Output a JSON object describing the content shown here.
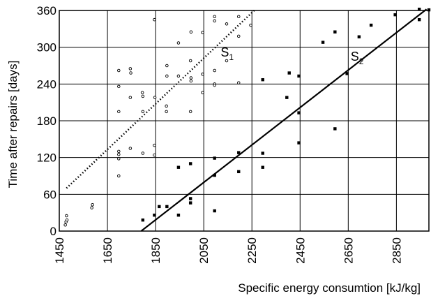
{
  "chart_data": {
    "type": "scatter",
    "title": "",
    "xlabel": "Specific energy consumtion [kJ/kg]",
    "ylabel": "Time after repairs [days]",
    "xlim": [
      1450,
      2985
    ],
    "ylim": [
      0,
      360
    ],
    "xticks": [
      "1450",
      "1650",
      "1850",
      "2050",
      "2250",
      "2450",
      "2650",
      "2850"
    ],
    "yticks": [
      "0",
      "60",
      "120",
      "180",
      "240",
      "300",
      "360"
    ],
    "grid": true,
    "series": [
      {
        "name": "S1",
        "marker": "open-circle",
        "points": [
          [
            1475,
            10
          ],
          [
            1478,
            15
          ],
          [
            1480,
            25
          ],
          [
            1482,
            18
          ],
          [
            1585,
            38
          ],
          [
            1588,
            43
          ],
          [
            1697,
            262
          ],
          [
            1697,
            236
          ],
          [
            1697,
            195
          ],
          [
            1697,
            130
          ],
          [
            1697,
            125
          ],
          [
            1697,
            118
          ],
          [
            1697,
            90
          ],
          [
            1745,
            265
          ],
          [
            1747,
            258
          ],
          [
            1745,
            218
          ],
          [
            1745,
            135
          ],
          [
            1795,
            226
          ],
          [
            1797,
            220
          ],
          [
            1797,
            195
          ],
          [
            1797,
            127
          ],
          [
            1845,
            345
          ],
          [
            1847,
            218
          ],
          [
            1845,
            140
          ],
          [
            1845,
            124
          ],
          [
            1897,
            270
          ],
          [
            1897,
            253
          ],
          [
            1895,
            204
          ],
          [
            1895,
            195
          ],
          [
            1945,
            307
          ],
          [
            1945,
            253
          ],
          [
            1997,
            325
          ],
          [
            1995,
            278
          ],
          [
            1997,
            250
          ],
          [
            1997,
            245
          ],
          [
            1995,
            195
          ],
          [
            2045,
            324
          ],
          [
            2045,
            256
          ],
          [
            2045,
            226
          ],
          [
            2095,
            350
          ],
          [
            2095,
            343
          ],
          [
            2095,
            262
          ],
          [
            2095,
            240
          ],
          [
            2095,
            238
          ],
          [
            2145,
            338
          ],
          [
            2145,
            278
          ],
          [
            2195,
            350
          ],
          [
            2195,
            318
          ],
          [
            2195,
            242
          ],
          [
            2245,
            336
          ]
        ]
      },
      {
        "name": "S2",
        "marker": "filled-square",
        "points": [
          [
            1797,
            18
          ],
          [
            1845,
            26
          ],
          [
            1865,
            40
          ],
          [
            1897,
            40
          ],
          [
            1945,
            26
          ],
          [
            1945,
            104
          ],
          [
            1995,
            46
          ],
          [
            1995,
            53
          ],
          [
            1995,
            110
          ],
          [
            2095,
            33
          ],
          [
            2095,
            91
          ],
          [
            2095,
            119
          ],
          [
            2195,
            97
          ],
          [
            2195,
            128
          ],
          [
            2295,
            104
          ],
          [
            2295,
            127
          ],
          [
            2295,
            247
          ],
          [
            2395,
            218
          ],
          [
            2405,
            258
          ],
          [
            2445,
            144
          ],
          [
            2445,
            193
          ],
          [
            2445,
            253
          ],
          [
            2545,
            308
          ],
          [
            2595,
            167
          ],
          [
            2595,
            325
          ],
          [
            2645,
            257
          ],
          [
            2695,
            317
          ],
          [
            2745,
            336
          ],
          [
            2845,
            353
          ],
          [
            2945,
            345
          ],
          [
            2945,
            362
          ],
          [
            2985,
            361
          ]
        ]
      }
    ],
    "trendlines": [
      {
        "name": "S1",
        "style": "dotted",
        "from": [
          1480,
          70
        ],
        "to": [
          2265,
          362
        ]
      },
      {
        "name": "S2",
        "style": "solid",
        "from": [
          1790,
          0
        ],
        "to": [
          2975,
          362
        ]
      }
    ],
    "annotations": [
      {
        "main": "S",
        "sub": "1",
        "x": 2120,
        "y": 285
      },
      {
        "main": "S",
        "sub": "2",
        "x": 2660,
        "y": 278
      }
    ]
  }
}
